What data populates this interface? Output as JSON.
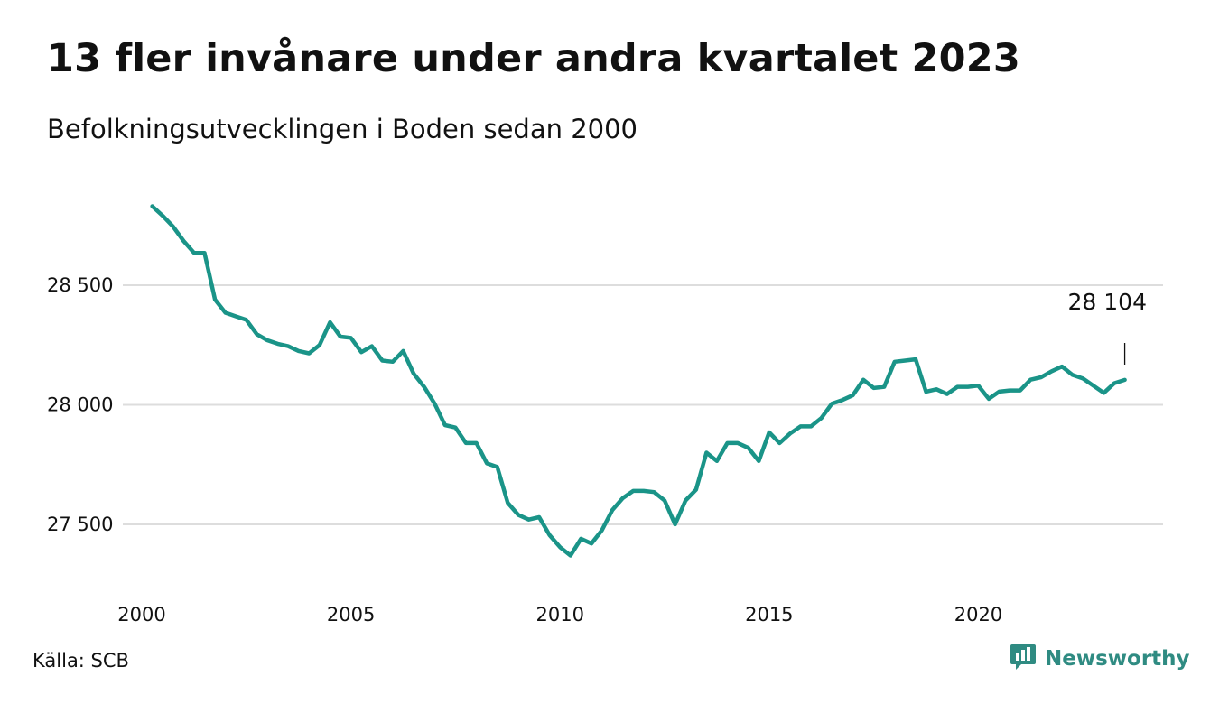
{
  "title": "13 fler invånare under andra kvartalet 2023",
  "subtitle": "Befolkningsutvecklingen i Boden sedan 2000",
  "source": "Källa: SCB",
  "brand": {
    "name": "Newsworthy",
    "icon": "newsworthy-logo-icon"
  },
  "colors": {
    "line": "#1a9488",
    "grid": "#dddddd",
    "text": "#111111",
    "brand": "#2f8b82"
  },
  "chart_data": {
    "type": "line",
    "title": "13 fler invånare under andra kvartalet 2023",
    "subtitle": "Befolkningsutvecklingen i Boden sedan 2000",
    "grid": true,
    "x_ticks": [
      2000,
      2005,
      2010,
      2015,
      2020
    ],
    "x_tick_labels": [
      "2000",
      "2005",
      "2010",
      "2015",
      "2020"
    ],
    "y_ticks": [
      27500,
      28000,
      28500
    ],
    "y_tick_labels": [
      "27 500",
      "28 000",
      "28 500"
    ],
    "xlim": [
      2000,
      2024.2
    ],
    "ylim": [
      27300,
      28900
    ],
    "last_value_label": "28 104",
    "series": [
      {
        "x": [
          2000.25,
          2000.5,
          2000.75,
          2001.0,
          2001.25,
          2001.5,
          2001.75,
          2002.0,
          2002.25,
          2002.5,
          2002.75,
          2003.0,
          2003.25,
          2003.5,
          2003.75,
          2004.0,
          2004.25,
          2004.5,
          2004.75,
          2005.0,
          2005.25,
          2005.5,
          2005.75,
          2006.0,
          2006.25,
          2006.5,
          2006.75,
          2007.0,
          2007.25,
          2007.5,
          2007.75,
          2008.0,
          2008.25,
          2008.5,
          2008.75,
          2009.0,
          2009.25,
          2009.5,
          2009.75,
          2010.0,
          2010.25,
          2010.5,
          2010.75,
          2011.0,
          2011.25,
          2011.5,
          2011.75,
          2012.0,
          2012.25,
          2012.5,
          2012.75,
          2013.0,
          2013.25,
          2013.5,
          2013.75,
          2014.0,
          2014.25,
          2014.5,
          2014.75,
          2015.0,
          2015.25,
          2015.5,
          2015.75,
          2016.0,
          2016.25,
          2016.5,
          2016.75,
          2017.0,
          2017.25,
          2017.5,
          2017.75,
          2018.0,
          2018.25,
          2018.5,
          2018.75,
          2019.0,
          2019.25,
          2019.5,
          2019.75,
          2020.0,
          2020.25,
          2020.5,
          2020.75,
          2021.0,
          2021.25,
          2021.5,
          2021.75,
          2022.0,
          2022.25,
          2022.5,
          2022.75,
          2023.0,
          2023.25,
          2023.5
        ],
        "values": [
          28830,
          28790,
          28745,
          28685,
          28635,
          28635,
          28440,
          28385,
          28370,
          28355,
          28295,
          28270,
          28255,
          28245,
          28225,
          28215,
          28250,
          28345,
          28285,
          28280,
          28220,
          28245,
          28185,
          28180,
          28225,
          28130,
          28075,
          28005,
          27915,
          27905,
          27840,
          27840,
          27755,
          27740,
          27590,
          27540,
          27520,
          27530,
          27455,
          27405,
          27370,
          27440,
          27420,
          27475,
          27560,
          27610,
          27640,
          27640,
          27635,
          27600,
          27500,
          27600,
          27645,
          27800,
          27765,
          27840,
          27840,
          27820,
          27765,
          27885,
          27840,
          27880,
          27910,
          27910,
          27945,
          28005,
          28020,
          28040,
          28105,
          28070,
          28075,
          28180,
          28185,
          28190,
          28055,
          28065,
          28045,
          28075,
          28075,
          28080,
          28025,
          28055,
          28060,
          28060,
          28105,
          28115,
          28140,
          28160,
          28125,
          28110,
          28080,
          28050,
          28090,
          28104
        ]
      }
    ]
  }
}
